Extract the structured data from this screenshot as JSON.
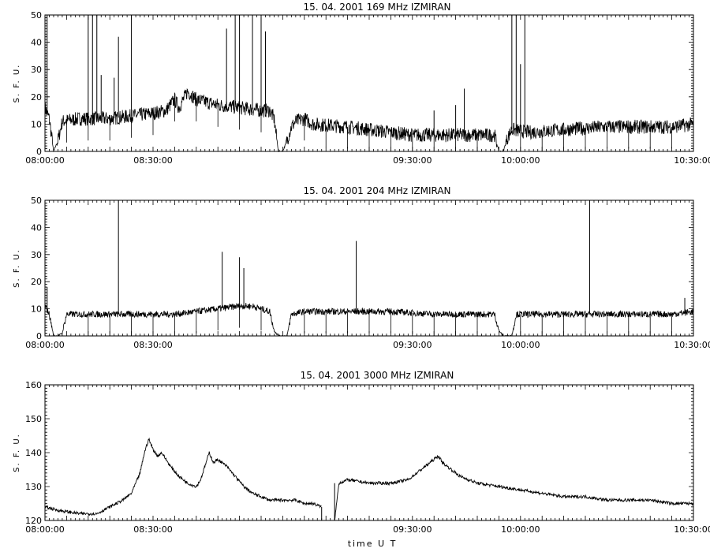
{
  "xlabel": "time  U T",
  "chart_data": [
    {
      "type": "line",
      "title": "15.  04.  2001    169 MHz    IZMIRAN",
      "ylabel": "S. F. U.",
      "xlim_minutes": [
        0,
        150
      ],
      "ylim": [
        0,
        50
      ],
      "x_ticks": [
        "08:00:00",
        "08:30:00",
        "09:30:00",
        "10:00:00",
        "10:30:00"
      ],
      "x_tick_minutes": [
        0,
        25,
        85,
        110,
        150
      ],
      "y_ticks": [
        0,
        10,
        20,
        30,
        40,
        50
      ],
      "baseline": [
        [
          0,
          16
        ],
        [
          1,
          12
        ],
        [
          2,
          0
        ],
        [
          3,
          4
        ],
        [
          4,
          11
        ],
        [
          8,
          12
        ],
        [
          15,
          12
        ],
        [
          20,
          13
        ],
        [
          25,
          14
        ],
        [
          28,
          15
        ],
        [
          30,
          19
        ],
        [
          31,
          16
        ],
        [
          33,
          22
        ],
        [
          35,
          19
        ],
        [
          40,
          17
        ],
        [
          45,
          16
        ],
        [
          50,
          15
        ],
        [
          52,
          15
        ],
        [
          53,
          12
        ],
        [
          54,
          0
        ],
        [
          55,
          0
        ],
        [
          56,
          4
        ],
        [
          57,
          9
        ],
        [
          58,
          11
        ],
        [
          60,
          12
        ],
        [
          62,
          10
        ],
        [
          70,
          9
        ],
        [
          80,
          7
        ],
        [
          85,
          6
        ],
        [
          90,
          6
        ],
        [
          100,
          6
        ],
        [
          104,
          6
        ],
        [
          105,
          0
        ],
        [
          106,
          0
        ],
        [
          107,
          5
        ],
        [
          108,
          8
        ],
        [
          112,
          7
        ],
        [
          120,
          8
        ],
        [
          130,
          9
        ],
        [
          140,
          9
        ],
        [
          145,
          9
        ],
        [
          150,
          10
        ]
      ],
      "spikes_up": [
        [
          0.5,
          50
        ],
        [
          10,
          50
        ],
        [
          11,
          50
        ],
        [
          12,
          50
        ],
        [
          13,
          28
        ],
        [
          16,
          27
        ],
        [
          17,
          42
        ],
        [
          20,
          50
        ],
        [
          42,
          45
        ],
        [
          44,
          50
        ],
        [
          45,
          50
        ],
        [
          48,
          50
        ],
        [
          50,
          50
        ],
        [
          51,
          44
        ],
        [
          90,
          15
        ],
        [
          95,
          17
        ],
        [
          97,
          23
        ],
        [
          108,
          50
        ],
        [
          109,
          50
        ],
        [
          110,
          32
        ],
        [
          111,
          50
        ]
      ],
      "spikes_down": [
        2,
        5,
        10,
        15,
        20,
        25,
        30,
        35,
        40,
        45,
        50,
        60,
        65,
        70,
        75,
        80,
        85,
        90,
        95,
        100,
        110,
        115,
        120,
        125,
        130,
        135,
        140,
        145
      ]
    },
    {
      "type": "line",
      "title": "15.  04.  2001    204 MHz    IZMIRAN",
      "ylabel": "S. F. U.",
      "xlim_minutes": [
        0,
        150
      ],
      "ylim": [
        0,
        50
      ],
      "x_ticks": [
        "08:00:00",
        "08:30:00",
        "09:30:00",
        "10:00:00",
        "10:30:00"
      ],
      "x_tick_minutes": [
        0,
        25,
        85,
        110,
        150
      ],
      "y_ticks": [
        0,
        10,
        20,
        30,
        40,
        50
      ],
      "baseline": [
        [
          0,
          11
        ],
        [
          1,
          8
        ],
        [
          2,
          0
        ],
        [
          3,
          0
        ],
        [
          4,
          1
        ],
        [
          5,
          8
        ],
        [
          10,
          8
        ],
        [
          20,
          8
        ],
        [
          30,
          8
        ],
        [
          35,
          9
        ],
        [
          40,
          10
        ],
        [
          45,
          11
        ],
        [
          48,
          11
        ],
        [
          52,
          9
        ],
        [
          53,
          2
        ],
        [
          54,
          0
        ],
        [
          56,
          0
        ],
        [
          57,
          8
        ],
        [
          60,
          9
        ],
        [
          70,
          9
        ],
        [
          80,
          9
        ],
        [
          90,
          8
        ],
        [
          100,
          8
        ],
        [
          104,
          8
        ],
        [
          105,
          2
        ],
        [
          106,
          0
        ],
        [
          108,
          0
        ],
        [
          109,
          8
        ],
        [
          120,
          8
        ],
        [
          130,
          8
        ],
        [
          140,
          8
        ],
        [
          145,
          8
        ],
        [
          150,
          9
        ]
      ],
      "spikes_up": [
        [
          0.5,
          18
        ],
        [
          17,
          50
        ],
        [
          41,
          31
        ],
        [
          45,
          29
        ],
        [
          46,
          25
        ],
        [
          72,
          35
        ],
        [
          126,
          50
        ],
        [
          148,
          14
        ]
      ],
      "spikes_down": [
        3,
        10,
        15,
        20,
        25,
        30,
        35,
        40,
        45,
        50,
        60,
        65,
        70,
        75,
        80,
        85,
        90,
        95,
        100,
        110,
        115,
        120,
        125,
        130,
        135,
        140,
        145
      ]
    },
    {
      "type": "line",
      "title": "15.  04.  2001    3000 MHz    IZMIRAN",
      "ylabel": "S. F. U.",
      "xlim_minutes": [
        0,
        150
      ],
      "ylim": [
        120,
        160
      ],
      "x_ticks": [
        "08:00:00",
        "08:30:00",
        "09:30:00",
        "10:00:00",
        "10:30:00"
      ],
      "x_tick_minutes": [
        0,
        25,
        85,
        110,
        150
      ],
      "y_ticks": [
        120,
        130,
        140,
        150,
        160
      ],
      "gap_minutes": [
        64,
        67
      ],
      "series": [
        {
          "values": [
            [
              0,
              124
            ],
            [
              3,
              123
            ],
            [
              8,
              122
            ],
            [
              12,
              122
            ],
            [
              15,
              124
            ],
            [
              18,
              126
            ],
            [
              20,
              128
            ],
            [
              22,
              134
            ],
            [
              23,
              140
            ],
            [
              24,
              144
            ],
            [
              25,
              141
            ],
            [
              26,
              139
            ],
            [
              27,
              140
            ],
            [
              29,
              136
            ],
            [
              31,
              133
            ],
            [
              33,
              131
            ],
            [
              35,
              130
            ],
            [
              36,
              132
            ],
            [
              37,
              136
            ],
            [
              38,
              140
            ],
            [
              39,
              137
            ],
            [
              40,
              138
            ],
            [
              42,
              136
            ],
            [
              44,
              133
            ],
            [
              46,
              130
            ],
            [
              48,
              128
            ],
            [
              50,
              127
            ],
            [
              52,
              126
            ],
            [
              55,
              126
            ],
            [
              58,
              126
            ],
            [
              60,
              125
            ],
            [
              62,
              125
            ],
            [
              64,
              124
            ]
          ]
        },
        {
          "values": [
            [
              67,
              120
            ],
            [
              68,
              131
            ],
            [
              70,
              132
            ],
            [
              75,
              131
            ],
            [
              80,
              131
            ],
            [
              84,
              132
            ],
            [
              86,
              134
            ],
            [
              88,
              136
            ],
            [
              90,
              138
            ],
            [
              91,
              139
            ],
            [
              92,
              137
            ],
            [
              94,
              135
            ],
            [
              96,
              133
            ],
            [
              100,
              131
            ],
            [
              105,
              130
            ],
            [
              110,
              129
            ],
            [
              115,
              128
            ],
            [
              120,
              127
            ],
            [
              125,
              127
            ],
            [
              130,
              126
            ],
            [
              135,
              126
            ],
            [
              140,
              126
            ],
            [
              145,
              125
            ],
            [
              150,
              125
            ]
          ]
        }
      ]
    }
  ]
}
